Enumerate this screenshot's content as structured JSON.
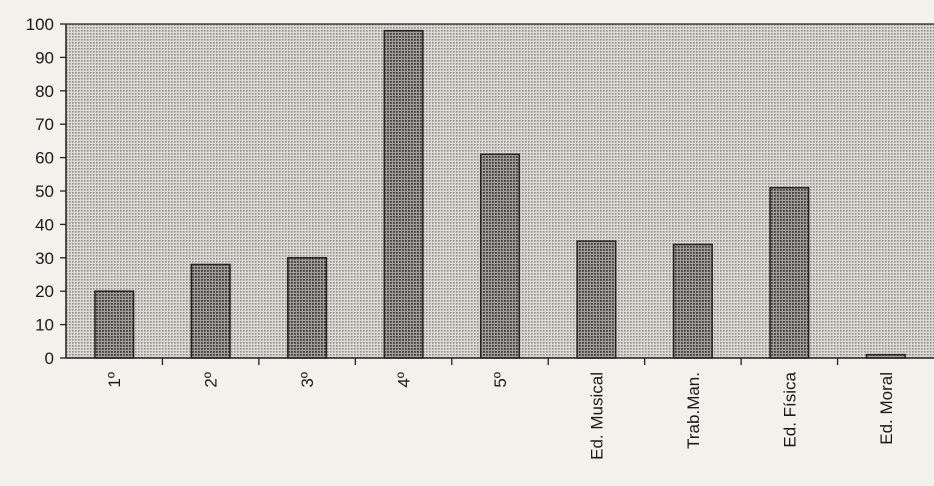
{
  "chart_data": {
    "type": "bar",
    "title": "",
    "xlabel": "",
    "ylabel": "",
    "categories": [
      "1º",
      "2º",
      "3º",
      "4º",
      "5º",
      "Ed. Musical",
      "Trab.Man.",
      "Ed. Física",
      "Ed. Moral"
    ],
    "values": [
      20,
      28,
      30,
      98,
      61,
      35,
      34,
      51,
      1
    ],
    "ylim": [
      0,
      100
    ],
    "yticks": [
      "0",
      "10",
      "20",
      "30",
      "40",
      "50",
      "60",
      "70",
      "80",
      "90",
      "100"
    ],
    "grid": false,
    "legend": "none",
    "colors": {
      "plot_background": "#c9c7c2",
      "bar_fill": "#8a8884",
      "bar_stroke": "#222222",
      "axis": "#222222"
    }
  }
}
